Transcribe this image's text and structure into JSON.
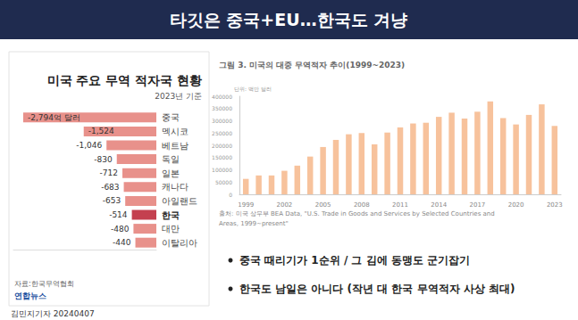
{
  "slide": {
    "title": "타깃은 중국+EU…한국도 겨냥",
    "bullets": [
      "중국 때리기가 1순위 / 그 김에 동맹도 군기잡기",
      "한국도 남일은 아니다 (작년 대 한국 무역적자 사상 최대)"
    ],
    "byline": "김민지기자 20240407"
  },
  "chart_data": [
    {
      "type": "bar",
      "orientation": "horizontal",
      "title": "미국 주요 무역 적자국 현황",
      "subtitle": "2023년 기준",
      "categories": [
        "중국",
        "멕시코",
        "베트남",
        "독일",
        "일본",
        "캐나다",
        "아일랜드",
        "한국",
        "대만",
        "이탈리아"
      ],
      "values": [
        -2794,
        -1524,
        -1046,
        -830,
        -712,
        -683,
        -653,
        -514,
        -480,
        -440
      ],
      "value_labels": [
        "-2,794억 달러",
        "-1,524",
        "-1,046",
        "-830",
        "-712",
        "-683",
        "-653",
        "-514",
        "-480",
        "-440"
      ],
      "colors": [
        "#e8918b",
        "#e8918b",
        "#e8918b",
        "#e8918b",
        "#e8918b",
        "#e8918b",
        "#e8918b",
        "#c4404f",
        "#e8918b",
        "#e8918b"
      ],
      "xlim": [
        -3000,
        0
      ],
      "tick_labels": false,
      "data_labels": true,
      "grid": false,
      "source": "자료:한국무역협회",
      "credit": "연합뉴스"
    },
    {
      "type": "bar",
      "title": "그림 3. 미국의 대중 무역적자 추이(1999~2023)",
      "y_label": "단위: 백만 달러",
      "categories": [
        "1999",
        null,
        null,
        "2002",
        null,
        null,
        "2005",
        null,
        null,
        "2008",
        null,
        null,
        "2011",
        null,
        null,
        "2014",
        null,
        null,
        "2017",
        null,
        null,
        "2020",
        null,
        null,
        "2023"
      ],
      "values": [
        63000,
        77000,
        77000,
        96000,
        117000,
        154000,
        193000,
        222000,
        245000,
        250000,
        204000,
        252000,
        273000,
        289000,
        292000,
        316000,
        333000,
        309000,
        337000,
        379000,
        311000,
        285000,
        324000,
        367000,
        279000
      ],
      "color": "#f7c29c",
      "ylim": [
        0,
        400000
      ],
      "yticks": [
        0,
        50000,
        100000,
        150000,
        200000,
        250000,
        300000,
        350000,
        400000
      ],
      "grid": false,
      "source": [
        "출처: 미국 상무부 BEA Data, \"U.S. Trade in Goods and Services by Selected Countries and",
        "Areas, 1999~present\""
      ]
    }
  ]
}
